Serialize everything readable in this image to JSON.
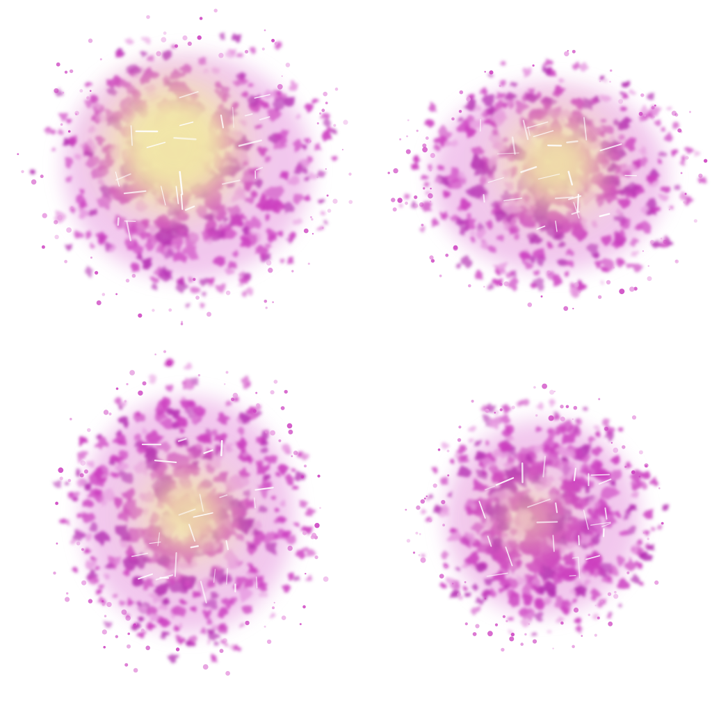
{
  "artwork": {
    "colors": {
      "background": "#ffffff",
      "magenta": "#cc3fc0",
      "magenta_dark": "#b52fb3",
      "magenta_light": "#e79ae0",
      "cream": "#f2e6a8",
      "scratch": "#ffffff"
    },
    "splatters": [
      {
        "name": "splatter-top-left",
        "core": "cream-strong"
      },
      {
        "name": "splatter-top-right",
        "core": "cream-medium"
      },
      {
        "name": "splatter-bottom-left",
        "core": "cream-medium"
      },
      {
        "name": "splatter-bottom-right",
        "core": "cream-faint"
      }
    ]
  }
}
